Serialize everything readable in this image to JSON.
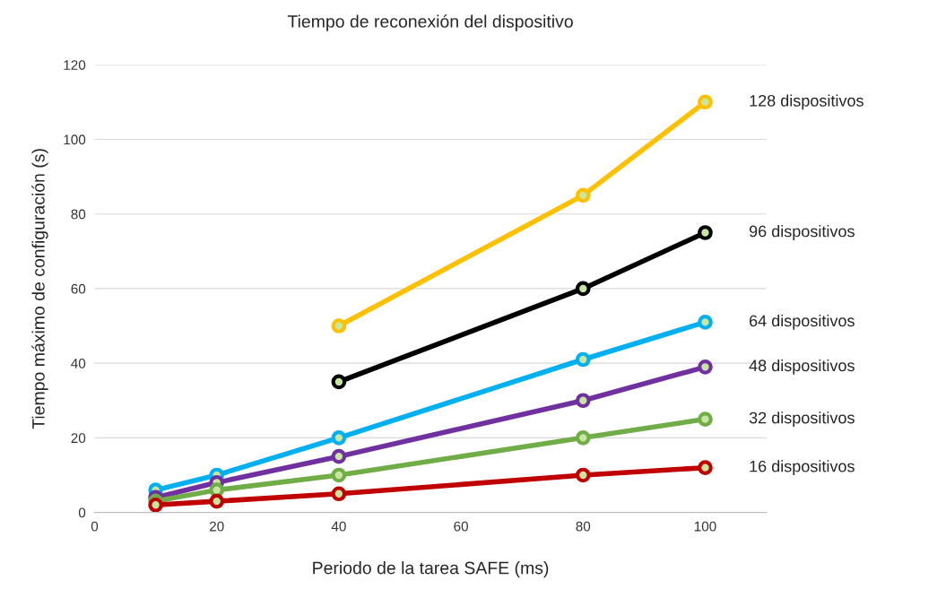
{
  "chart_data": {
    "type": "line",
    "title": "Tiempo de reconexión del dispositivo",
    "xlabel": "Periodo de la tarea SAFE (ms)",
    "ylabel": "Tiempo máximo de configuración (s)",
    "x": [
      10,
      20,
      40,
      80,
      100
    ],
    "series": [
      {
        "name": "128 dispositivos",
        "color": "#ffc000",
        "x": [
          40,
          80,
          100
        ],
        "values": [
          50,
          85,
          110
        ]
      },
      {
        "name": "96 dispositivos",
        "color": "#000000",
        "x": [
          40,
          80,
          100
        ],
        "values": [
          35,
          60,
          75
        ]
      },
      {
        "name": "64 dispositivos",
        "color": "#00b0f0",
        "values": [
          6,
          10,
          20,
          41,
          51
        ]
      },
      {
        "name": "48 dispositivos",
        "color": "#7030a0",
        "values": [
          4,
          8,
          15,
          30,
          39
        ]
      },
      {
        "name": "32 dispositivos",
        "color": "#70ad47",
        "values": [
          3,
          6,
          10,
          20,
          25
        ]
      },
      {
        "name": "16 dispositivos",
        "color": "#c00000",
        "values": [
          2,
          3,
          5,
          10,
          12
        ]
      }
    ],
    "xlim": [
      0,
      110
    ],
    "xticks": [
      0,
      20,
      40,
      60,
      80,
      100
    ],
    "ylim": [
      0,
      120
    ],
    "yticks": [
      0,
      20,
      40,
      60,
      80,
      100,
      120
    ],
    "grid": "y",
    "marker": "circle",
    "line_style": "solid",
    "legend": false
  }
}
